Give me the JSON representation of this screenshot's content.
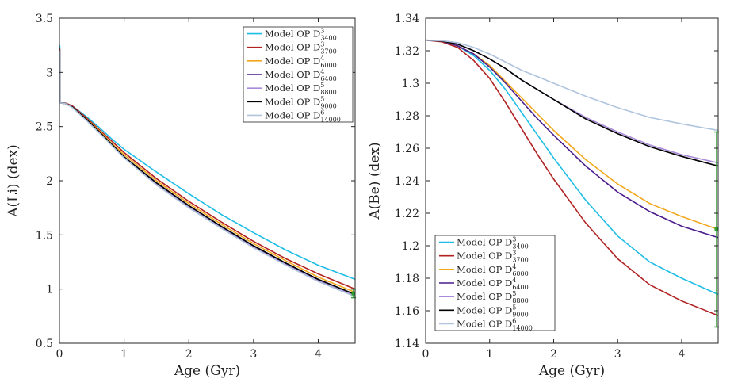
{
  "chart_data": [
    {
      "type": "line",
      "xlabel": "Age (Gyr)",
      "ylabel": "A(Li) (dex)",
      "xlim": [
        0,
        4.57
      ],
      "ylim": [
        0.5,
        3.5
      ],
      "xticks": [
        0,
        1,
        2,
        3,
        4
      ],
      "yticks": [
        0.5,
        1,
        1.5,
        2,
        2.5,
        3,
        3.5
      ],
      "xtick_labels": [
        "0",
        "1",
        "2",
        "3",
        "4"
      ],
      "ytick_labels": [
        "0.5",
        "1",
        "1.5",
        "2",
        "2.5",
        "3",
        "3.5"
      ],
      "legend_position": "top-right",
      "x": [
        0,
        0.1,
        0.2,
        0.4,
        0.6,
        0.8,
        1.0,
        1.5,
        2.0,
        2.5,
        3.0,
        3.5,
        4.0,
        4.57
      ],
      "series": [
        {
          "name": "Model OP D",
          "sup": "3",
          "sub": "3400",
          "color": "#1ebde6",
          "values": [
            2.72,
            2.715,
            2.69,
            2.6,
            2.5,
            2.39,
            2.29,
            2.08,
            1.88,
            1.69,
            1.52,
            1.36,
            1.22,
            1.09
          ]
        },
        {
          "name": "Model OP D",
          "sup": "3",
          "sub": "3700",
          "color": "#b22222",
          "values": [
            2.72,
            2.715,
            2.69,
            2.59,
            2.48,
            2.37,
            2.26,
            2.02,
            1.81,
            1.62,
            1.44,
            1.28,
            1.14,
            1.0
          ]
        },
        {
          "name": "Model OP D",
          "sup": "4",
          "sub": "6000",
          "color": "#f2a81d",
          "values": [
            2.72,
            2.71,
            2.68,
            2.58,
            2.47,
            2.35,
            2.24,
            2.0,
            1.79,
            1.6,
            1.42,
            1.26,
            1.11,
            0.97
          ]
        },
        {
          "name": "Model OP D",
          "sup": "4",
          "sub": "6400",
          "color": "#4b1c8c",
          "values": [
            2.72,
            2.71,
            2.68,
            2.575,
            2.46,
            2.34,
            2.22,
            1.98,
            1.77,
            1.57,
            1.39,
            1.23,
            1.08,
            0.93
          ]
        },
        {
          "name": "Model OP D",
          "sup": "5",
          "sub": "8800",
          "color": "#a98ad8",
          "values": [
            2.72,
            2.71,
            2.68,
            2.57,
            2.455,
            2.335,
            2.215,
            1.97,
            1.76,
            1.565,
            1.385,
            1.225,
            1.075,
            0.94
          ]
        },
        {
          "name": "Model OP D",
          "sup": "5",
          "sub": "9000",
          "color": "#000000",
          "values": [
            2.72,
            2.71,
            2.68,
            2.575,
            2.46,
            2.34,
            2.22,
            1.98,
            1.77,
            1.58,
            1.4,
            1.24,
            1.09,
            0.95
          ]
        },
        {
          "name": "Model OP D",
          "sup": "6",
          "sub": "14000",
          "color": "#b0c4de",
          "values": [
            2.72,
            2.71,
            2.675,
            2.565,
            2.45,
            2.33,
            2.21,
            1.96,
            1.75,
            1.56,
            1.38,
            1.22,
            1.07,
            0.93
          ]
        }
      ],
      "spike": {
        "x": 0,
        "values": [
          3.25,
          3.22,
          3.2
        ]
      },
      "observation": {
        "x": 4.57,
        "y": 0.96,
        "err_low": 0.92,
        "err_high": 1.0,
        "color": "#2e9e2e"
      }
    },
    {
      "type": "line",
      "xlabel": "Age (Gyr)",
      "ylabel": "A(Be) (dex)",
      "xlim": [
        0,
        4.57
      ],
      "ylim": [
        1.14,
        1.34
      ],
      "xticks": [
        0,
        1,
        2,
        3,
        4
      ],
      "yticks": [
        1.14,
        1.16,
        1.18,
        1.2,
        1.22,
        1.24,
        1.26,
        1.28,
        1.3,
        1.32,
        1.34
      ],
      "xtick_labels": [
        "0",
        "1",
        "2",
        "3",
        "4"
      ],
      "ytick_labels": [
        "1.14",
        "1.16",
        "1.18",
        "1.2",
        "1.22",
        "1.24",
        "1.26",
        "1.28",
        "1.3",
        "1.32",
        "1.34"
      ],
      "legend_position": "bottom-left",
      "x": [
        0,
        0.25,
        0.5,
        0.75,
        1.0,
        1.25,
        1.5,
        1.75,
        2.0,
        2.5,
        3.0,
        3.5,
        4.0,
        4.57
      ],
      "series": [
        {
          "name": "Model OP D",
          "sup": "3",
          "sub": "3400",
          "color": "#1ebde6",
          "values": [
            1.3265,
            1.326,
            1.323,
            1.317,
            1.308,
            1.296,
            1.282,
            1.268,
            1.254,
            1.228,
            1.206,
            1.19,
            1.18,
            1.17
          ]
        },
        {
          "name": "Model OP D",
          "sup": "3",
          "sub": "3700",
          "color": "#b22222",
          "values": [
            1.3265,
            1.3255,
            1.322,
            1.314,
            1.303,
            1.288,
            1.272,
            1.256,
            1.241,
            1.214,
            1.192,
            1.176,
            1.166,
            1.157
          ]
        },
        {
          "name": "Model OP D",
          "sup": "4",
          "sub": "6000",
          "color": "#f2a81d",
          "values": [
            1.3265,
            1.326,
            1.323,
            1.318,
            1.311,
            1.301,
            1.291,
            1.281,
            1.271,
            1.253,
            1.238,
            1.226,
            1.218,
            1.21
          ]
        },
        {
          "name": "Model OP D",
          "sup": "4",
          "sub": "6400",
          "color": "#4b1c8c",
          "values": [
            1.3265,
            1.326,
            1.323,
            1.318,
            1.31,
            1.3,
            1.289,
            1.278,
            1.268,
            1.249,
            1.233,
            1.221,
            1.212,
            1.205
          ]
        },
        {
          "name": "Model OP D",
          "sup": "5",
          "sub": "8800",
          "color": "#a98ad8",
          "values": [
            1.3265,
            1.326,
            1.324,
            1.32,
            1.315,
            1.309,
            1.302,
            1.296,
            1.29,
            1.279,
            1.27,
            1.262,
            1.256,
            1.251
          ]
        },
        {
          "name": "Model OP D",
          "sup": "5",
          "sub": "9000",
          "color": "#000000",
          "values": [
            1.3265,
            1.326,
            1.324,
            1.32,
            1.315,
            1.309,
            1.302,
            1.296,
            1.29,
            1.278,
            1.269,
            1.261,
            1.255,
            1.249
          ]
        },
        {
          "name": "Model OP D",
          "sup": "6",
          "sub": "14000",
          "color": "#b0c4de",
          "values": [
            1.3265,
            1.3262,
            1.325,
            1.322,
            1.318,
            1.313,
            1.308,
            1.304,
            1.3,
            1.292,
            1.285,
            1.279,
            1.275,
            1.271
          ]
        }
      ],
      "observation": {
        "x": 4.57,
        "y": 1.21,
        "err_low": 1.15,
        "err_high": 1.27,
        "color": "#2e9e2e"
      }
    }
  ]
}
